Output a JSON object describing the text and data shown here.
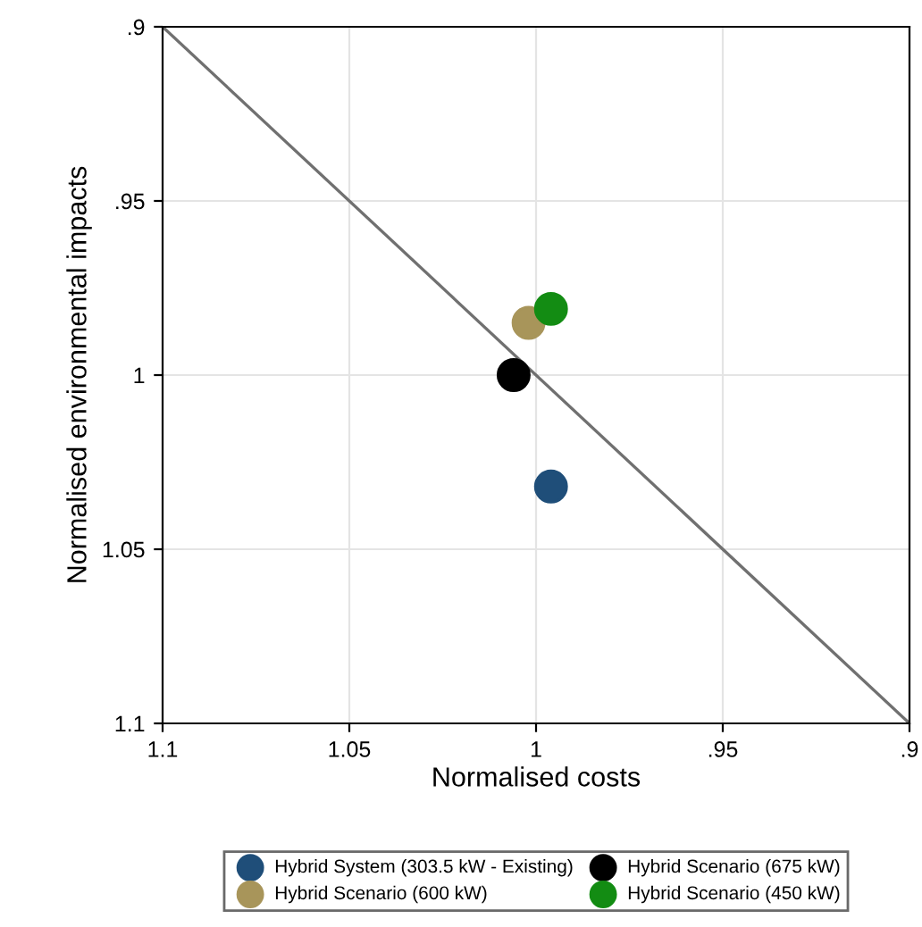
{
  "chart_data": {
    "type": "scatter",
    "xlabel": "Normalised costs",
    "ylabel": "Normalised environmental impacts",
    "series": [
      {
        "type": "line",
        "marker": "none",
        "color": "#707070",
        "x": [
          1.1,
          0.9
        ],
        "values": [
          0.9,
          1.1
        ]
      },
      {
        "name": "Hybrid System (303.5 kW - Existing)",
        "color": "#1f4e79",
        "x": [
          0.996
        ],
        "values": [
          1.032
        ]
      },
      {
        "name": "Hybrid Scenario (600 kW)",
        "color": "#a8955a",
        "x": [
          1.002
        ],
        "values": [
          0.985
        ]
      },
      {
        "name": "Hybrid Scenario (675 kW)",
        "color": "#000000",
        "x": [
          1.006
        ],
        "values": [
          1.0
        ]
      },
      {
        "name": "Hybrid Scenario (450 kW)",
        "color": "#138c13",
        "x": [
          0.996
        ],
        "values": [
          0.981
        ]
      }
    ],
    "xlim": [
      1.1,
      0.9
    ],
    "ylim": [
      1.1,
      0.9
    ],
    "xticks": [
      1.1,
      1.05,
      1,
      {
        "value": 0.95,
        "label": ".95"
      },
      {
        "value": 0.9,
        "label": ".9"
      }
    ],
    "yticks": [
      1.1,
      1.05,
      1,
      {
        "value": 0.95,
        "label": ".95"
      },
      {
        "value": 0.9,
        "label": ".9"
      }
    ],
    "grid": true,
    "legend": "bottom",
    "marker": "circle"
  }
}
